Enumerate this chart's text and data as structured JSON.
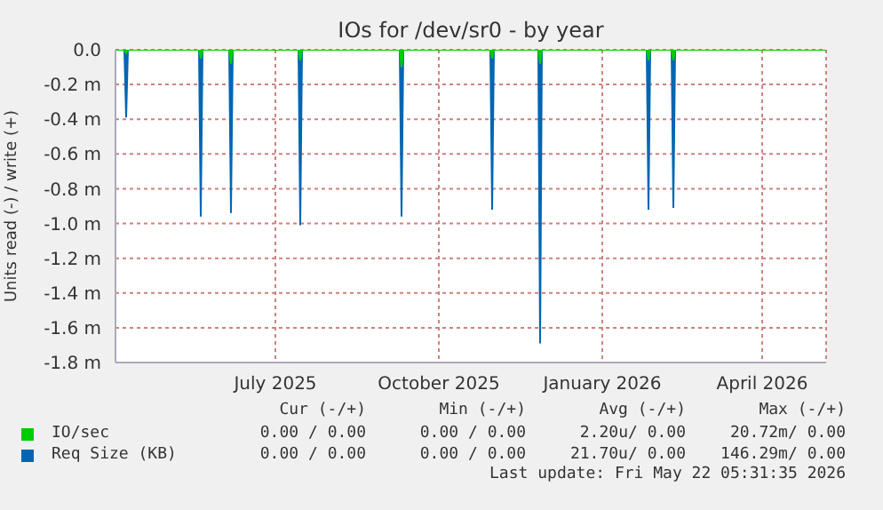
{
  "chart_data": {
    "type": "area",
    "title": "IOs for /dev/sr0 - by year",
    "ylabel": "Units read (-) / write (+)",
    "x": [
      "2025-04-16",
      "2025-04-21",
      "2025-04-22",
      "2025-04-23",
      "2025-06-02",
      "2025-06-03",
      "2025-06-04",
      "2025-06-19",
      "2025-06-20",
      "2025-06-21",
      "2025-07-28",
      "2025-07-29",
      "2025-07-30",
      "2025-09-23",
      "2025-09-24",
      "2025-09-25",
      "2025-11-13",
      "2025-11-14",
      "2025-11-15",
      "2025-12-10",
      "2025-12-11",
      "2025-12-12",
      "2026-02-09",
      "2026-02-10",
      "2026-02-11",
      "2026-02-23",
      "2026-02-24",
      "2026-02-25",
      "2026-05-21"
    ],
    "series": [
      {
        "name": "IO/sec",
        "color": "#00cc00",
        "values": [
          0,
          0,
          -0.02,
          0,
          0,
          -0.05,
          0,
          0,
          -0.08,
          0,
          0,
          -0.06,
          0,
          0,
          -0.1,
          0,
          0,
          -0.05,
          0,
          0,
          -0.08,
          0,
          0,
          -0.06,
          0,
          0,
          -0.06,
          0,
          0
        ]
      },
      {
        "name": "Req Size (KB)",
        "color": "#0066b3",
        "values": [
          0,
          0,
          -0.39,
          0,
          0,
          -0.96,
          0,
          0,
          -0.94,
          0,
          0,
          -1.01,
          0,
          0,
          -0.96,
          0,
          0,
          -0.92,
          0,
          0,
          -1.69,
          0,
          0,
          -0.92,
          0,
          0,
          -0.91,
          0,
          0
        ]
      }
    ],
    "xlim": [
      "2025-04-16",
      "2026-05-21"
    ],
    "xticks": [
      {
        "value": "2025-07-15",
        "label": "July 2025"
      },
      {
        "value": "2025-10-15",
        "label": "October 2025"
      },
      {
        "value": "2026-01-15",
        "label": "January 2026"
      },
      {
        "value": "2026-04-15",
        "label": "April 2026"
      }
    ],
    "ylim": [
      -1.8,
      0
    ],
    "yticks": [
      {
        "value": 0,
        "label": "0.0"
      },
      {
        "value": -0.2,
        "label": "-0.2 m"
      },
      {
        "value": -0.4,
        "label": "-0.4 m"
      },
      {
        "value": -0.6,
        "label": "-0.6 m"
      },
      {
        "value": -0.8,
        "label": "-0.8 m"
      },
      {
        "value": -1.0,
        "label": "-1.0 m"
      },
      {
        "value": -1.2,
        "label": "-1.2 m"
      },
      {
        "value": -1.4,
        "label": "-1.4 m"
      },
      {
        "value": -1.6,
        "label": "-1.6 m"
      },
      {
        "value": -1.8,
        "label": "-1.8 m"
      }
    ],
    "grid": true,
    "legend": "bottom",
    "annotations": [
      "Cur (-/+)",
      "Min (-/+)",
      "Avg (-/+)",
      "Max (-/+)",
      "0.00 / 0.00",
      "0.00 / 0.00",
      "2.20u/ 0.00",
      "20.72m/ 0.00",
      "0.00 / 0.00",
      "0.00 / 0.00",
      "21.70u/ 0.00",
      "146.29m/ 0.00",
      "Last update: Fri May 22 05:31:35 2026"
    ]
  }
}
